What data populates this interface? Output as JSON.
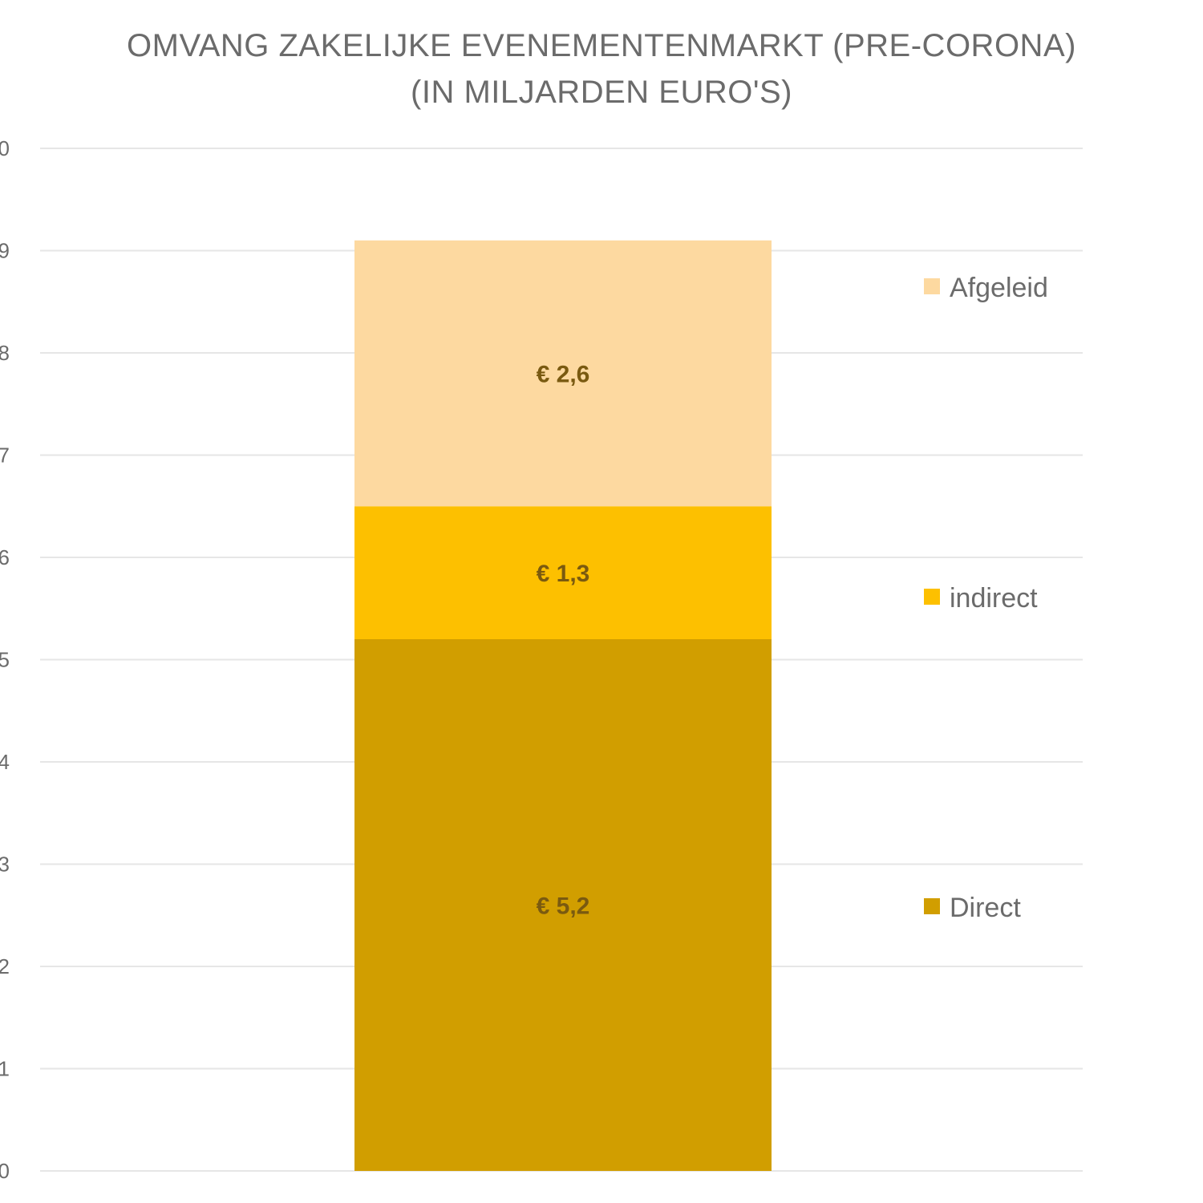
{
  "chart_data": {
    "type": "bar",
    "stacked": true,
    "title": "OMVANG ZAKELIJKE EVENEMENTENMARKT (PRE-CORONA)",
    "subtitle": "(IN MILJARDEN EURO'S)",
    "ylim": [
      0,
      10
    ],
    "grid": true,
    "legend_position": "right",
    "categories": [
      ""
    ],
    "series": [
      {
        "name": "Direct",
        "values": [
          5.2
        ],
        "label": "€ 5,2",
        "color": "#d19e00"
      },
      {
        "name": "indirect",
        "values": [
          1.3
        ],
        "label": "€ 1,3",
        "color": "#fdc000"
      },
      {
        "name": "Afgeleid",
        "values": [
          2.6
        ],
        "label": "€ 2,6",
        "color": "#fdd9a0"
      }
    ],
    "legend_order": [
      "Afgeleid",
      "indirect",
      "Direct"
    ]
  }
}
